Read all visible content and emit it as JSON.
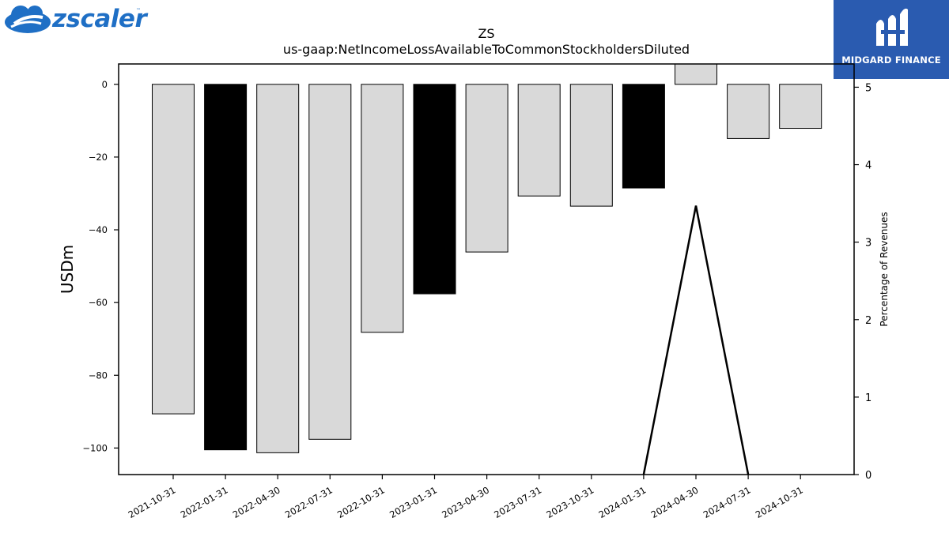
{
  "brand_left": {
    "name": "zscaler",
    "tm": "™",
    "icon": "zscaler-cloud-icon",
    "color": "#1f6fc5"
  },
  "brand_right": {
    "name": "MIDGARD FINANCE",
    "icon": "midgard-m-icon",
    "background": "#2a5bb0"
  },
  "chart_data": {
    "type": "bar",
    "title": "ZS",
    "subtitle": "us-gaap:NetIncomeLossAvailableToCommonStockholdersDiluted",
    "ylabel": "USDm",
    "y2label": "Percentage of Revenues",
    "categories": [
      "2021-10-31",
      "2022-01-31",
      "2022-04-30",
      "2022-07-31",
      "2022-10-31",
      "2023-01-31",
      "2023-04-30",
      "2023-07-31",
      "2023-10-31",
      "2024-01-31",
      "2024-04-30",
      "2024-07-31",
      "2024-10-31"
    ],
    "values": [
      -90.6,
      -100.5,
      -101.3,
      -97.6,
      -68.2,
      -57.6,
      -46.1,
      -30.7,
      -33.5,
      -28.5,
      5.6,
      -14.9,
      -12.1
    ],
    "highlight": [
      false,
      true,
      false,
      false,
      false,
      true,
      false,
      false,
      false,
      true,
      false,
      false,
      false
    ],
    "ylim": [
      -107.3,
      5.6
    ],
    "yticks": [
      0,
      -20,
      -40,
      -60,
      -80,
      -100
    ],
    "y2lim": [
      0,
      5.3
    ],
    "y2ticks": [
      0,
      1,
      2,
      3,
      4,
      5
    ],
    "line_series": {
      "name": "Percentage of Revenues",
      "values": [
        null,
        null,
        null,
        null,
        null,
        null,
        null,
        null,
        null,
        0,
        3.47,
        0,
        null
      ]
    },
    "colors": {
      "bar": "#d9d9d9",
      "bar_highlight": "#000000",
      "line": "#000000"
    }
  }
}
